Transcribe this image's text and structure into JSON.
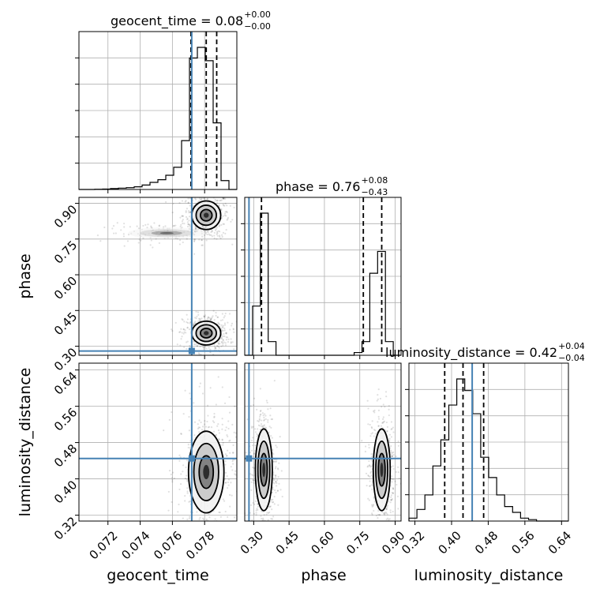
{
  "chart_data": {
    "type": "corner",
    "truth_color": "#4682b4",
    "parameters": [
      "geocent_time",
      "phase",
      "luminosity_distance"
    ],
    "truth": {
      "geocent_time": 0.0772,
      "phase": 0.28,
      "luminosity_distance": 0.445
    },
    "axis_labels": {
      "geocent_time": "geocent_time",
      "phase": "phase",
      "luminosity_distance": "luminosity_distance"
    },
    "titles": [
      {
        "param": "geocent_time",
        "text": "geocent_time = 0.08",
        "plus": "+0.00",
        "minus": "−0.00"
      },
      {
        "param": "phase",
        "text": "phase = 0.76",
        "plus": "+0.08",
        "minus": "−0.43"
      },
      {
        "param": "luminosity_distance",
        "text": "luminosity_distance = 0.42",
        "plus": "+0.04",
        "minus": "−0.04"
      }
    ],
    "ticks": {
      "geocent_time": [
        "0.072",
        "0.074",
        "0.076",
        "0.078"
      ],
      "phase": [
        "0.30",
        "0.45",
        "0.60",
        "0.75",
        "0.90"
      ],
      "luminosity_distance": [
        "0.32",
        "0.40",
        "0.48",
        "0.56",
        "0.64"
      ]
    },
    "ranges": {
      "geocent_time": [
        0.0702,
        0.08
      ],
      "phase": [
        0.262,
        0.925
      ],
      "luminosity_distance": [
        0.307,
        0.655
      ]
    },
    "quantiles": {
      "geocent_time": [
        0.07715,
        0.0781,
        0.07875
      ],
      "phase": [
        0.333,
        0.765,
        0.843
      ],
      "luminosity_distance": [
        0.385,
        0.425,
        0.47
      ]
    },
    "histograms": {
      "geocent_time": {
        "edges": [
          0.0702,
          0.07069,
          0.07118,
          0.07167,
          0.07216,
          0.07265,
          0.07314,
          0.07363,
          0.07412,
          0.07461,
          0.0751,
          0.07559,
          0.07608,
          0.07657,
          0.07706,
          0.07755,
          0.07804,
          0.07853,
          0.07902,
          0.07951,
          0.08
        ],
        "counts": [
          0,
          0,
          0.3,
          0.5,
          1,
          1.5,
          2,
          3,
          5,
          8,
          11,
          16,
          25,
          55,
          148,
          160,
          145,
          75,
          10,
          0
        ]
      },
      "phase": {
        "edges": [
          0.262,
          0.2952,
          0.3283,
          0.3615,
          0.3946,
          0.4278,
          0.4609,
          0.4941,
          0.5272,
          0.5604,
          0.5935,
          0.6267,
          0.6598,
          0.693,
          0.7261,
          0.7593,
          0.7924,
          0.8256,
          0.8587,
          0.8919,
          0.925
        ],
        "counts": [
          0,
          18,
          52,
          5,
          0,
          0,
          0,
          0,
          0,
          0,
          0,
          0,
          0,
          0,
          1,
          5,
          30,
          38,
          5,
          0
        ]
      },
      "luminosity_distance": {
        "edges": [
          0.307,
          0.3244,
          0.3418,
          0.3592,
          0.3766,
          0.394,
          0.4114,
          0.4288,
          0.4462,
          0.4636,
          0.481,
          0.4984,
          0.5158,
          0.5332,
          0.5506,
          0.568,
          0.5854,
          0.6028,
          0.6202,
          0.6376,
          0.655
        ],
        "counts": [
          1,
          4,
          9,
          19,
          28,
          40,
          49,
          45,
          37,
          22,
          15,
          9,
          5,
          3,
          1,
          0.5,
          0,
          0,
          0,
          0
        ]
      }
    },
    "density_modes": [
      {
        "x": "geocent_time",
        "y": "phase",
        "centers": [
          [
            0.0781,
            0.85,
            1
          ],
          [
            0.0781,
            0.355,
            1
          ],
          [
            0.07565,
            0.775,
            0.25
          ]
        ]
      },
      {
        "x": "geocent_time",
        "y": "luminosity_distance",
        "centers": [
          [
            0.0781,
            0.415,
            1
          ]
        ]
      },
      {
        "x": "phase",
        "y": "luminosity_distance",
        "centers": [
          [
            0.343,
            0.42,
            1
          ],
          [
            0.843,
            0.42,
            1
          ]
        ]
      }
    ]
  }
}
